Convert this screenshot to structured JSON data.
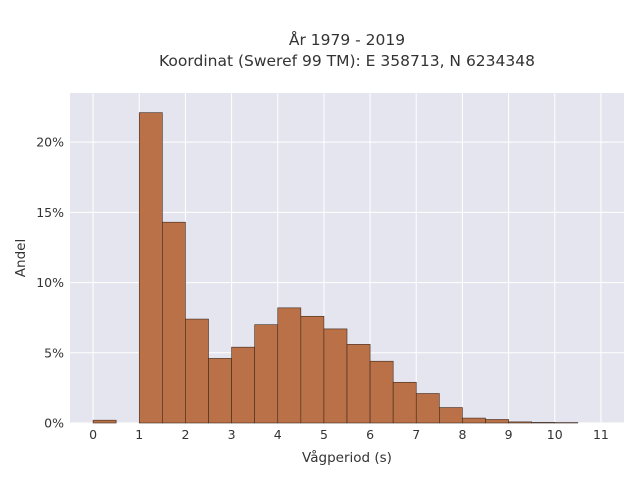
{
  "chart_data": {
    "type": "bar",
    "title_line1": "År 1979 - 2019",
    "title_line2": "Koordinat (Sweref 99 TM): E 358713, N 6234348",
    "xlabel": "Vågperiod (s)",
    "ylabel": "Andel",
    "bin_width": 0.5,
    "bins": [
      {
        "x": 0.0,
        "value": 0.2
      },
      {
        "x": 0.5,
        "value": 0.0
      },
      {
        "x": 1.0,
        "value": 22.1
      },
      {
        "x": 1.5,
        "value": 14.3
      },
      {
        "x": 2.0,
        "value": 7.4
      },
      {
        "x": 2.5,
        "value": 4.6
      },
      {
        "x": 3.0,
        "value": 5.4
      },
      {
        "x": 3.5,
        "value": 7.0
      },
      {
        "x": 4.0,
        "value": 8.2
      },
      {
        "x": 4.5,
        "value": 7.6
      },
      {
        "x": 5.0,
        "value": 6.7
      },
      {
        "x": 5.5,
        "value": 5.6
      },
      {
        "x": 6.0,
        "value": 4.4
      },
      {
        "x": 6.5,
        "value": 2.9
      },
      {
        "x": 7.0,
        "value": 2.1
      },
      {
        "x": 7.5,
        "value": 1.1
      },
      {
        "x": 8.0,
        "value": 0.35
      },
      {
        "x": 8.5,
        "value": 0.25
      },
      {
        "x": 9.0,
        "value": 0.08
      },
      {
        "x": 9.5,
        "value": 0.04
      },
      {
        "x": 10.0,
        "value": 0.03
      }
    ],
    "xlim": [
      -0.5,
      11.5
    ],
    "ylim": [
      0,
      23.5
    ],
    "x_ticks": [
      0,
      1,
      2,
      3,
      4,
      5,
      6,
      7,
      8,
      9,
      10,
      11
    ],
    "y_ticks": [
      0,
      5,
      10,
      15,
      20
    ],
    "y_tick_labels": [
      "0%",
      "5%",
      "10%",
      "15%",
      "20%"
    ],
    "grid": true,
    "colors": {
      "bar_fill": "#bb7147",
      "bar_stroke": "#3d2a1e",
      "plot_background": "#e5e5ef",
      "grid": "#ffffff"
    }
  }
}
